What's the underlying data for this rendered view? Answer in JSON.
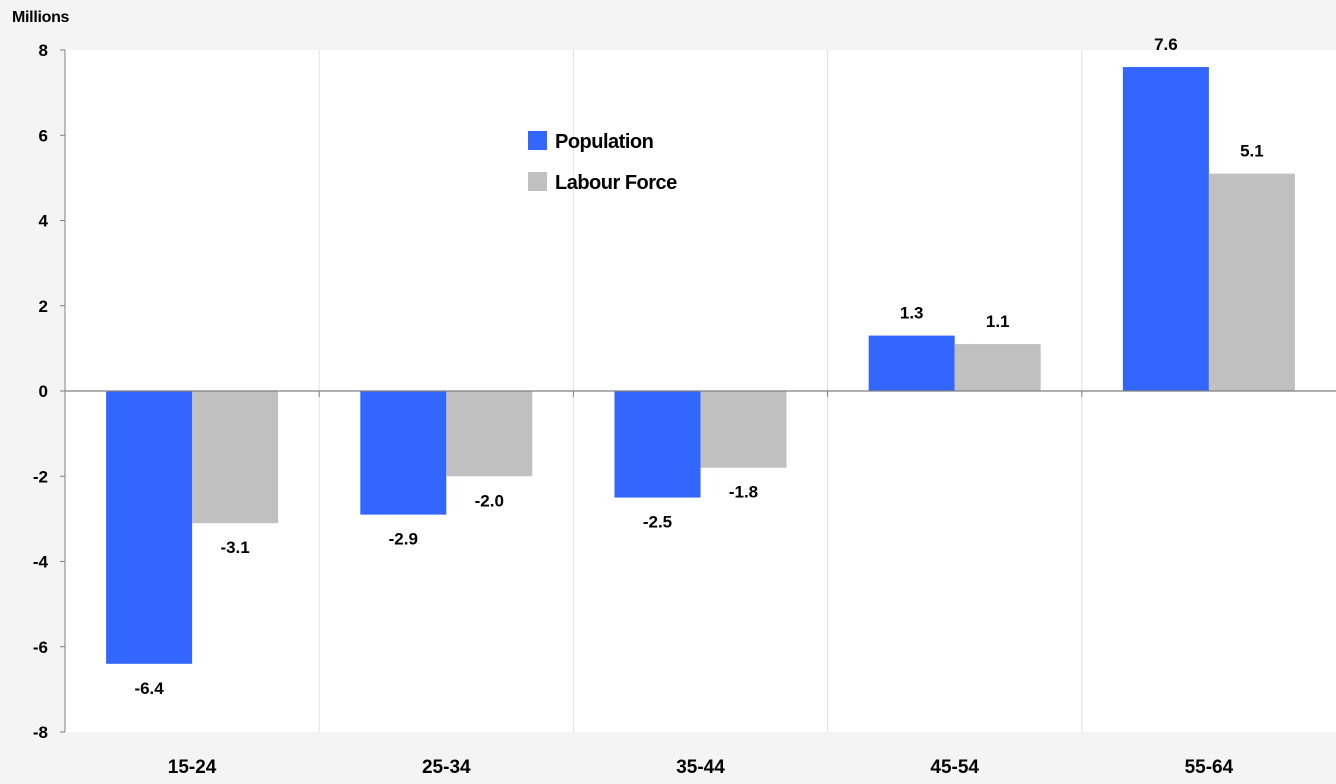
{
  "chart_data": {
    "type": "bar",
    "title": "",
    "unit_label": "Millions",
    "xlabel": "",
    "ylabel": "",
    "categories": [
      "15-24",
      "25-34",
      "35-44",
      "45-54",
      "55-64"
    ],
    "series": [
      {
        "name": "Population",
        "color": "#3366ff",
        "values": [
          -6.4,
          -2.9,
          -2.5,
          1.3,
          7.6
        ],
        "labels": [
          "-6.4",
          "-2.9",
          "-2.5",
          "1.3",
          "7.6"
        ]
      },
      {
        "name": "Labour Force",
        "color": "#c0c0c0",
        "values": [
          -3.1,
          -2.0,
          -1.8,
          1.1,
          5.1
        ],
        "labels": [
          "-3.1",
          "-2.0",
          "-1.8",
          "1.1",
          "5.1"
        ]
      }
    ],
    "ylim": [
      -8,
      8
    ],
    "yticks": [
      "8",
      "6",
      "4",
      "2",
      "0",
      "-2",
      "-4",
      "-6",
      "-8"
    ],
    "ytick_values": [
      8,
      6,
      4,
      2,
      0,
      -2,
      -4,
      -6,
      -8
    ],
    "grid": "vertical",
    "legend_position": "top-center"
  }
}
